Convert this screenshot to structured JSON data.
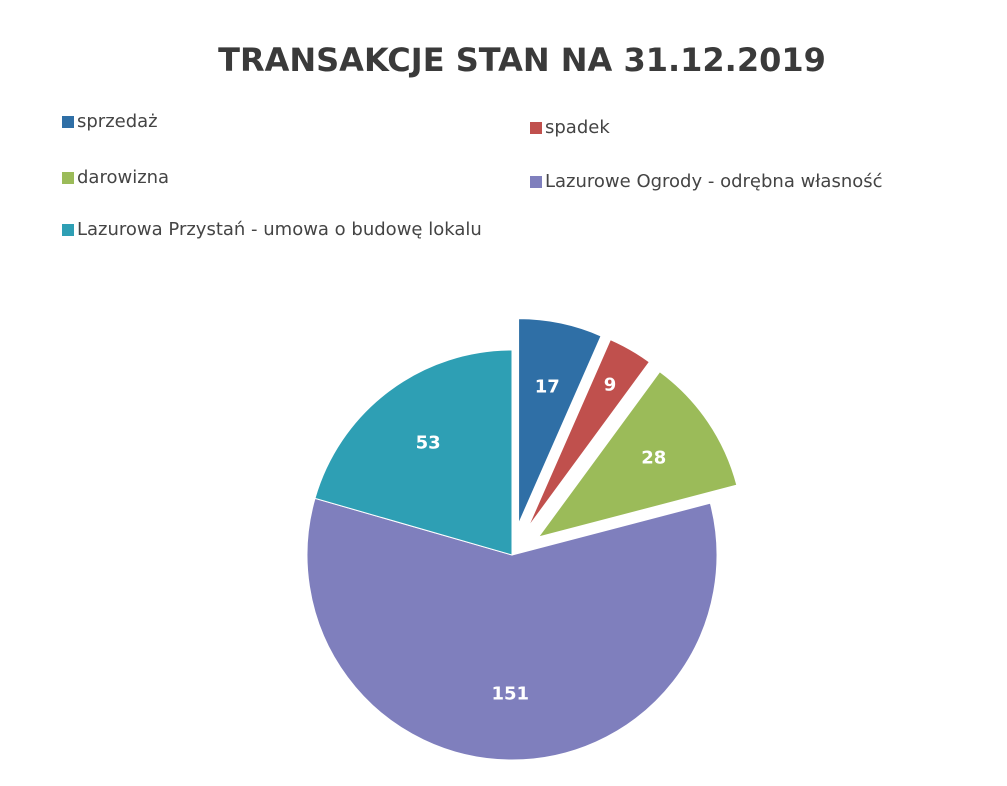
{
  "chart_data": {
    "type": "pie",
    "title": "TRANSAKCJE STAN NA 31.12.2019",
    "categories": [
      "sprzedaż",
      "spadek",
      "darowizna",
      "Lazurowe Ogrody - odrębna własność",
      "Lazurowa Przystań - umowa o budowę lokalu"
    ],
    "values": [
      17,
      9,
      28,
      151,
      53
    ],
    "colors": [
      "#2f6fa6",
      "#c0504d",
      "#9bbb59",
      "#7f7fbd",
      "#2e9fb4"
    ],
    "exploded": [
      true,
      true,
      true,
      false,
      false
    ],
    "legend": "top"
  }
}
